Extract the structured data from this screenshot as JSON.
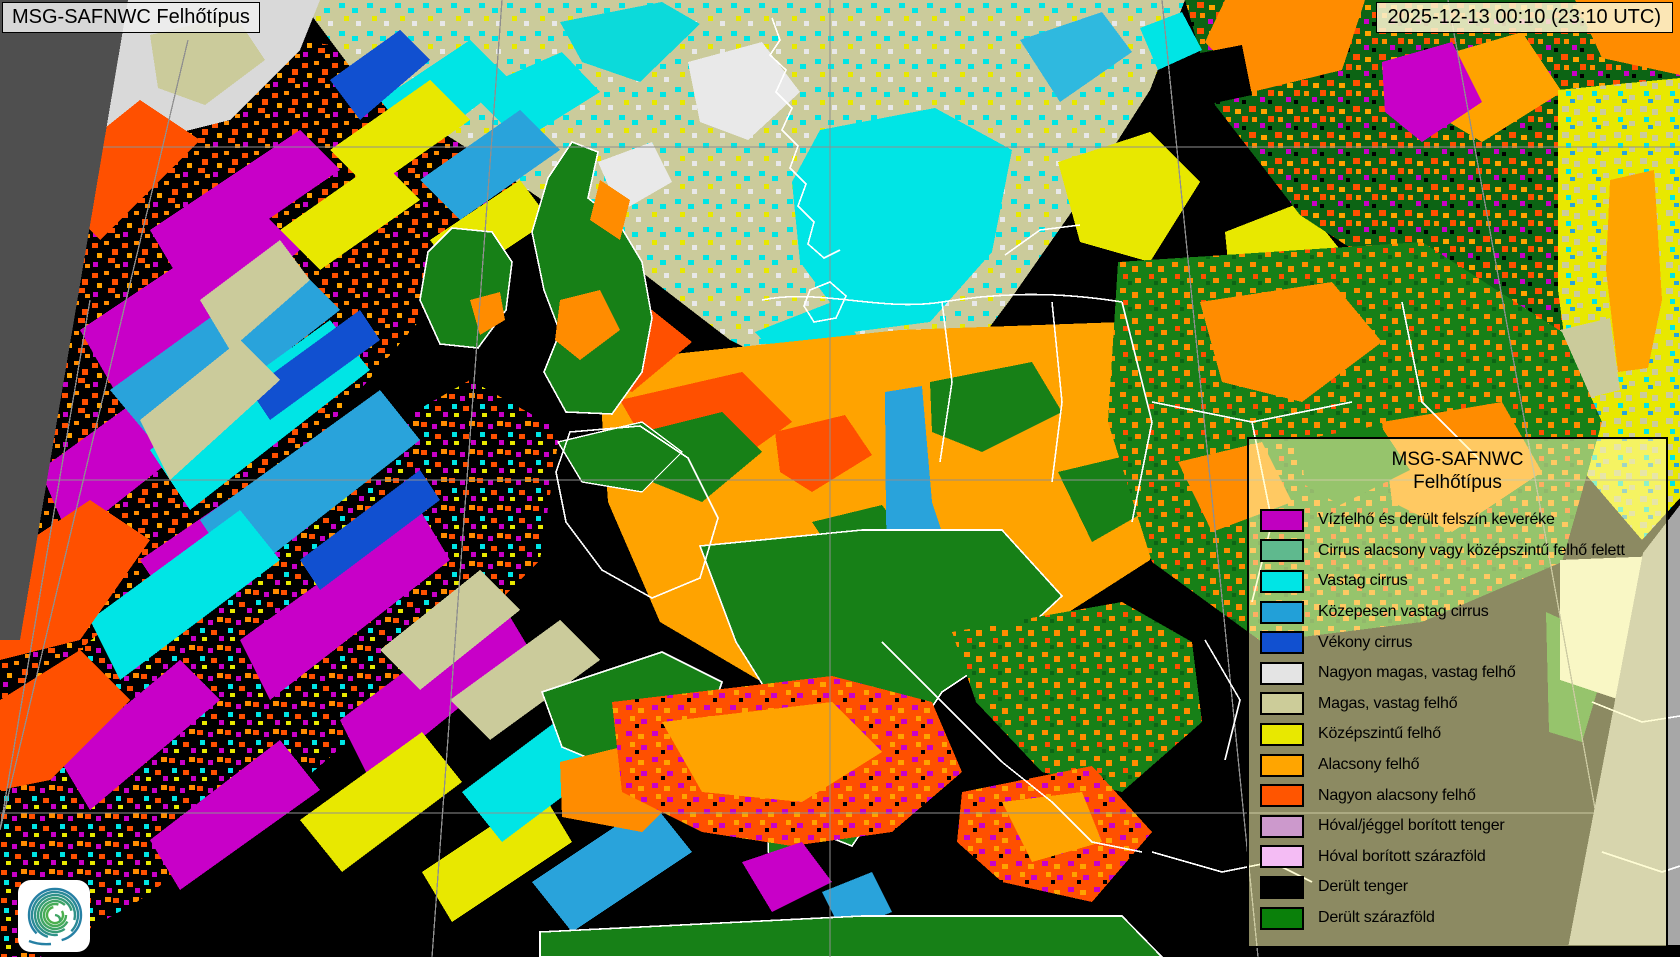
{
  "product_label": {
    "text": "MSG-SAFNWC Felhőtípus"
  },
  "timestamp_label": {
    "text": "2025-12-13 00:10 (23:10 UTC)"
  },
  "legend": {
    "title_line1": "MSG-SAFNWC",
    "title_line2": "Felhőtípus",
    "items": [
      {
        "label": "Vízfelhő és derült felszín keveréke",
        "color": "#C000C0"
      },
      {
        "label": "Cirrus alacsony vagy középszintű felhő felett",
        "color": "#5FB98E"
      },
      {
        "label": "Vastag cirrus",
        "color": "#00E5E5"
      },
      {
        "label": "Közepesen vastag cirrus",
        "color": "#22A0D8"
      },
      {
        "label": "Vékony cirrus",
        "color": "#1150D0"
      },
      {
        "label": "Nagyon magas, vastag felhő",
        "color": "#E4E4E4"
      },
      {
        "label": "Magas, vastag felhő",
        "color": "#CCCC99"
      },
      {
        "label": "Középszintű felhő",
        "color": "#E8E800"
      },
      {
        "label": "Alacsony felhő",
        "color": "#FFA500"
      },
      {
        "label": "Nagyon alacsony felhő",
        "color": "#FF5500"
      },
      {
        "label": "Hóval/jéggel borított tenger",
        "color": "#CC99CC"
      },
      {
        "label": "Hóval borított szárazföld",
        "color": "#F4BCF4"
      },
      {
        "label": "Derült tenger",
        "color": "#000000"
      },
      {
        "label": "Derült szárazföld",
        "color": "#0A800A"
      }
    ]
  },
  "logo": {
    "name": "meteorological-service-spiral-logo"
  },
  "map": {
    "palette": {
      "clear_sea": "#000000",
      "clear_land": "#178017",
      "dark_land_ne": "#0C6414",
      "low_cloud": "#FFA300",
      "very_low_cloud": "#FF5000",
      "mid_cloud": "#E8E800",
      "high_thick_cloud": "#CBCB9B",
      "very_high_thick_cloud": "#E8E8E8",
      "thick_cirrus": "#00E5E5",
      "medium_cirrus": "#29A3DB",
      "thin_cirrus": "#1150D0",
      "water_cloud_mix": "#C800C8",
      "no_data_left": "#4F4F4F",
      "no_data_right": "#A7A7A7",
      "graticule": "#8F8F8F",
      "borders": "#FFFFFF"
    }
  }
}
